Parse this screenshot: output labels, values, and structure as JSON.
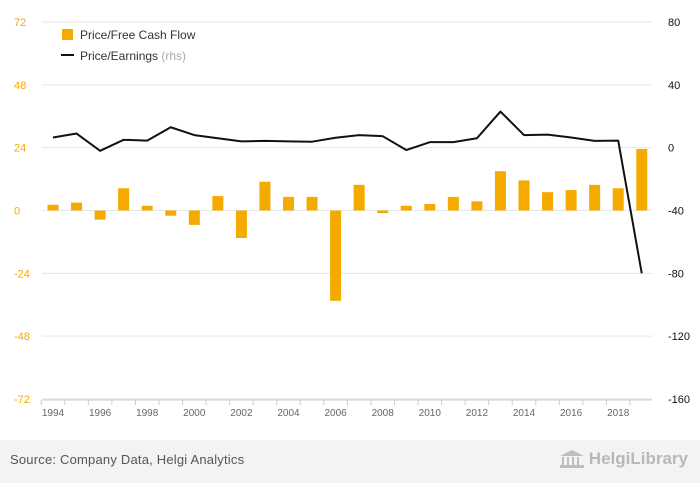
{
  "chart_data": {
    "type": "bar+line",
    "x": [
      1994,
      1995,
      1996,
      1997,
      1998,
      1999,
      2000,
      2001,
      2002,
      2003,
      2004,
      2005,
      2006,
      2007,
      2008,
      2009,
      2010,
      2011,
      2012,
      2013,
      2014,
      2015,
      2016,
      2017,
      2018,
      2019
    ],
    "x_tick_labels": [
      "1994",
      "1996",
      "1998",
      "2000",
      "2002",
      "2004",
      "2006",
      "2008",
      "2010",
      "2012",
      "2014",
      "2016",
      "2018"
    ],
    "series": [
      {
        "name": "Price/Free Cash Flow",
        "kind": "bar",
        "axis": "left",
        "color": "#f5aa00",
        "values": [
          2.2,
          3.0,
          -3.5,
          8.5,
          1.8,
          -2.0,
          -5.5,
          5.5,
          -10.5,
          11.0,
          5.2,
          5.2,
          -34.5,
          9.8,
          -1.0,
          1.8,
          2.5,
          5.2,
          3.5,
          15.0,
          11.5,
          7.0,
          7.8,
          9.8,
          8.5,
          23.5
        ]
      },
      {
        "name": "Price/Earnings",
        "name_suffix": "(rhs)",
        "kind": "line",
        "axis": "right",
        "color": "#111111",
        "values": [
          6.5,
          9.0,
          -2.0,
          5.0,
          4.5,
          13.0,
          8.0,
          6.0,
          4.0,
          4.3,
          4.0,
          3.8,
          6.3,
          8.0,
          7.3,
          -1.5,
          3.5,
          3.5,
          6.0,
          23.0,
          8.0,
          8.3,
          6.5,
          4.3,
          4.5,
          -80.0
        ]
      }
    ],
    "left_axis": {
      "min": -72,
      "max": 72,
      "ticks": [
        "72",
        "48",
        "24",
        "0",
        "-24",
        "-48",
        "-72"
      ],
      "color": "#f5aa00"
    },
    "right_axis": {
      "min": -160,
      "max": 80,
      "ticks": [
        "80",
        "40",
        "0",
        "-40",
        "-80",
        "-120",
        "-160"
      ],
      "color": "#111111"
    },
    "grid": true,
    "legend_position": "top-left"
  },
  "footer": {
    "source": "Source: Company Data, Helgi Analytics",
    "brand": "HelgiLibrary"
  }
}
